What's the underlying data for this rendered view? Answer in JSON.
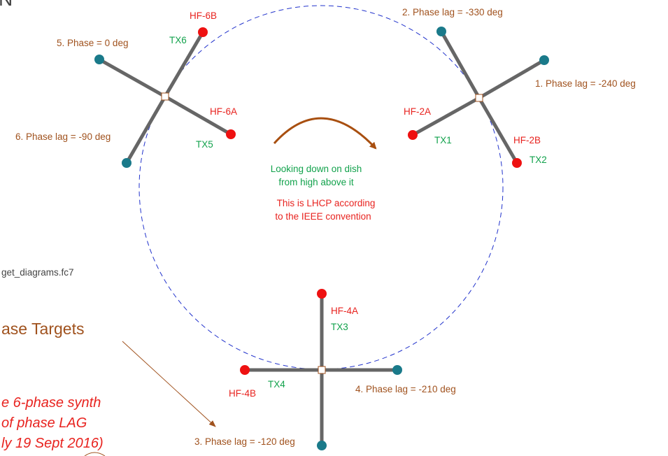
{
  "colors": {
    "arm": "#666666",
    "red_dot": "#ee1111",
    "teal_dot": "#1a7a8a",
    "circle": "#2233cc",
    "brown_text": "#a0521e",
    "red_text": "#e8231f",
    "green_text": "#12a24c",
    "arrow": "#a84f10"
  },
  "corner_fragment": "N",
  "file_label": "get_diagrams.fc7",
  "title_fragment": "ase Targets",
  "notes": [
    "e 6-phase synth",
    "of phase LAG",
    "ly 19 Sept 2016)"
  ],
  "center_text": {
    "line1": "Looking down on dish",
    "line2": "from high above it",
    "line3": "This is LHCP according",
    "line4": "to the IEEE convention"
  },
  "hf_labels": {
    "hf6b": "HF-6B",
    "hf6a": "HF-6A",
    "hf2a": "HF-2A",
    "hf2b": "HF-2B",
    "hf4a": "HF-4A",
    "hf4b": "HF-4B"
  },
  "tx_labels": {
    "tx1": "TX1",
    "tx2": "TX2",
    "tx3": "TX3",
    "tx4": "TX4",
    "tx5": "TX5",
    "tx6": "TX6"
  },
  "phase_labels": {
    "p1": "1. Phase lag = -240 deg",
    "p2": "2. Phase lag = -330 deg",
    "p3": "3. Phase lag = -120 deg",
    "p4": "4. Phase lag = -210 deg",
    "p5": "5. Phase = 0 deg",
    "p6": "6. Phase lag = -90 deg"
  }
}
